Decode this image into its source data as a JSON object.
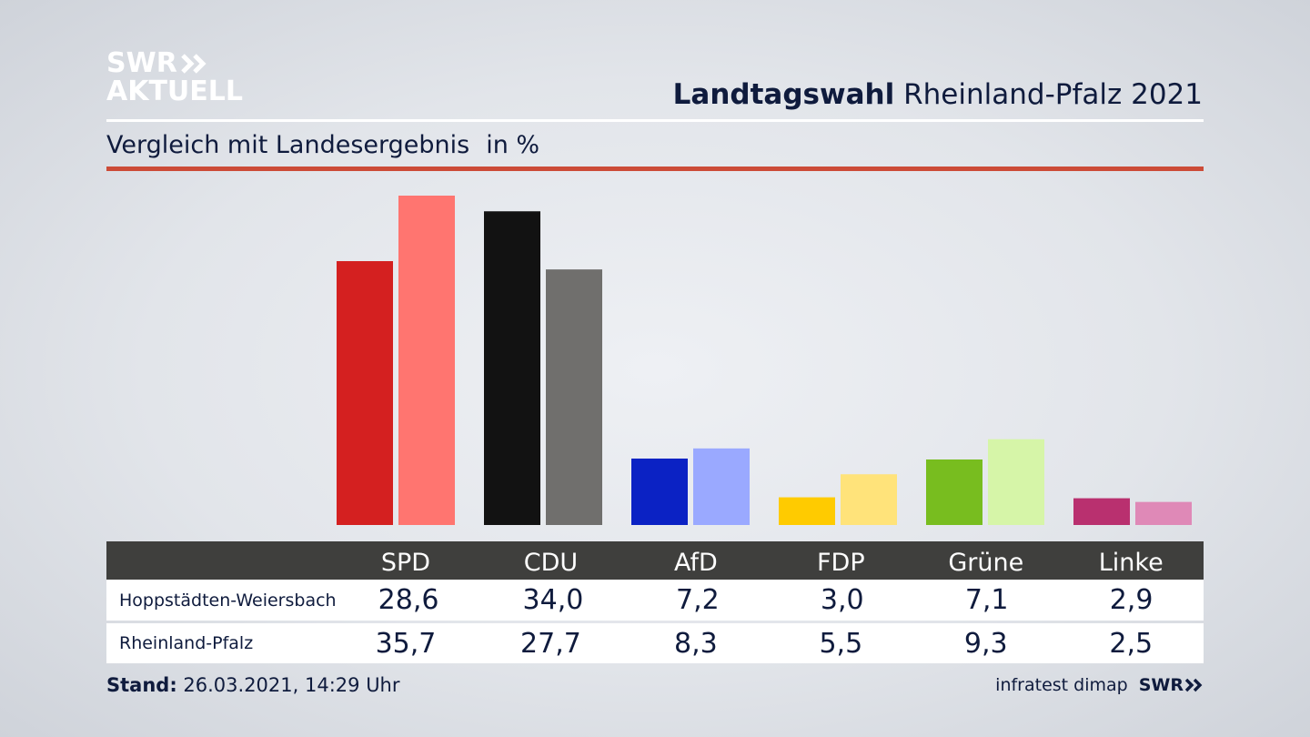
{
  "logo": {
    "line1": "SWR",
    "line2": "AKTUELL"
  },
  "header": {
    "title_bold": "Landtagswahl",
    "title_rest": "Rheinland-Pfalz 2021"
  },
  "subtitle": {
    "text": "Vergleich mit Landesergebnis",
    "unit": "in %"
  },
  "colors": {
    "accent_rule": "#cc4b37",
    "table_header": "#3f3f3d"
  },
  "chart_data": {
    "type": "bar",
    "categories": [
      "SPD",
      "CDU",
      "AfD",
      "FDP",
      "Grüne",
      "Linke"
    ],
    "series": [
      {
        "name": "Hoppstädten-Weiersbach",
        "values": [
          28.6,
          34.0,
          7.2,
          3.0,
          7.1,
          2.9
        ],
        "colors": [
          "#d42020",
          "#121212",
          "#0b22c4",
          "#ffcb00",
          "#78bd1f",
          "#b9306f"
        ]
      },
      {
        "name": "Rheinland-Pfalz",
        "values": [
          35.7,
          27.7,
          8.3,
          5.5,
          9.3,
          2.5
        ],
        "colors": [
          "#ff7570",
          "#706f6d",
          "#9aa9ff",
          "#ffe37a",
          "#d6f5a8",
          "#df89b7"
        ]
      }
    ],
    "ylim": [
      0,
      35.7
    ],
    "title": "",
    "xlabel": "",
    "ylabel": "",
    "grid": false,
    "legend": "none"
  },
  "table": {
    "headers": [
      "SPD",
      "CDU",
      "AfD",
      "FDP",
      "Grüne",
      "Linke"
    ],
    "rows": [
      {
        "label": "Hoppstädten-Weiersbach",
        "values": [
          "28,6",
          "34,0",
          "7,2",
          "3,0",
          "7,1",
          "2,9"
        ]
      },
      {
        "label": "Rheinland-Pfalz",
        "values": [
          "35,7",
          "27,7",
          "8,3",
          "5,5",
          "9,3",
          "2,5"
        ]
      }
    ]
  },
  "footer": {
    "stand_label": "Stand:",
    "stand_value": "26.03.2021, 14:29 Uhr",
    "source": "infratest dimap",
    "brand": "SWR"
  }
}
